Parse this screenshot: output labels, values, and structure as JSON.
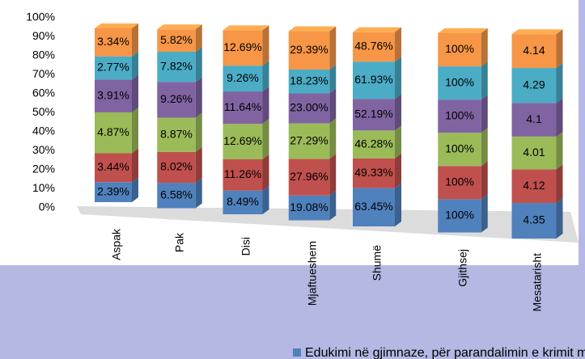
{
  "chart_data": {
    "type": "bar",
    "stacking": "percent",
    "categories": [
      "Aspak",
      "Pak",
      "Disi",
      "Mjaftueshem",
      "Shumë",
      "Gjithsej",
      "Mesatarisht"
    ],
    "series": [
      {
        "name": "Edukimi në gjimnaze, për parandalimin e krimit mjedisor",
        "color": "#4f81bd",
        "values": [
          2.39,
          6.58,
          8.49,
          19.08,
          63.45,
          100,
          4.35
        ],
        "value_labels": [
          "2.39%",
          "6.58%",
          "8.49%",
          "19.08%",
          "63.45%",
          "100%",
          "4.35"
        ]
      },
      {
        "color": "#c0504d",
        "values": [
          3.44,
          8.02,
          11.26,
          27.96,
          49.33,
          100,
          4.12
        ],
        "value_labels": [
          "3.44%",
          "8.02%",
          "11.26%",
          "27.96%",
          "49.33%",
          "100%",
          "4.12"
        ]
      },
      {
        "color": "#9bbb59",
        "values": [
          4.87,
          8.87,
          12.69,
          27.29,
          46.28,
          100,
          4.01
        ],
        "value_labels": [
          "4.87%",
          "8.87%",
          "12.69%",
          "27.29%",
          "46.28%",
          "100%",
          "4.01"
        ]
      },
      {
        "color": "#8064a2",
        "values": [
          3.91,
          9.26,
          11.64,
          23.0,
          52.19,
          100,
          4.1
        ],
        "value_labels": [
          "3.91%",
          "9.26%",
          "11.64%",
          "23.00%",
          "52.19%",
          "100%",
          "4.1"
        ]
      },
      {
        "color": "#4bacc6",
        "values": [
          2.77,
          7.82,
          9.26,
          18.23,
          61.93,
          100,
          4.29
        ],
        "value_labels": [
          "2.77%",
          "7.82%",
          "9.26%",
          "18.23%",
          "61.93%",
          "100%",
          "4.29"
        ]
      },
      {
        "color": "#f79646",
        "values": [
          3.34,
          5.82,
          12.69,
          29.39,
          48.76,
          100,
          4.14
        ],
        "value_labels": [
          "3.34%",
          "5.82%",
          "12.69%",
          "29.39%",
          "48.76%",
          "100%",
          "4.14"
        ]
      }
    ],
    "ylim": [
      0,
      100
    ],
    "yticks": [
      {
        "value": 0,
        "label": "0%"
      },
      {
        "value": 10,
        "label": "10%"
      },
      {
        "value": 20,
        "label": "20%"
      },
      {
        "value": 30,
        "label": "30%"
      },
      {
        "value": 40,
        "label": "40%"
      },
      {
        "value": 50,
        "label": "50%"
      },
      {
        "value": 60,
        "label": "60%"
      },
      {
        "value": 70,
        "label": "70%"
      },
      {
        "value": 80,
        "label": "80%"
      },
      {
        "value": 90,
        "label": "90%"
      },
      {
        "value": 100,
        "label": "100%"
      }
    ]
  }
}
